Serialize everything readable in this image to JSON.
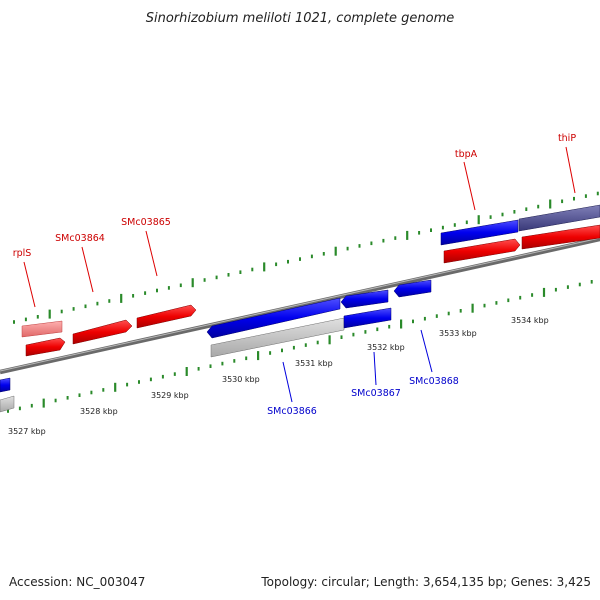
{
  "header": {
    "title": "Sinorhizobium meliloti 1021, complete genome"
  },
  "footer": {
    "accession": "Accession: NC_003047",
    "summary": "Topology: circular; Length: 3,654,135 bp; Genes: 3,425"
  },
  "scale_labels": [
    "3527 kbp",
    "3528 kbp",
    "3529 kbp",
    "3530 kbp",
    "3531 kbp",
    "3532 kbp",
    "3533 kbp",
    "3534 kbp"
  ],
  "gene_labels": {
    "rplS": "rplS",
    "SMc03864": "SMc03864",
    "SMc03865": "SMc03865",
    "tbpA": "tbpA",
    "thiP": "thiP",
    "SMc03866": "SMc03866",
    "SMc03867": "SMc03867",
    "SMc03868": "SMc03868"
  },
  "colors": {
    "forward_strand": "#ee0000",
    "reverse_strand": "#0000ee",
    "forward_label": "#cc0000",
    "reverse_label": "#0000cc",
    "tick": "#2a8a2a",
    "backbone": "#888888"
  }
}
